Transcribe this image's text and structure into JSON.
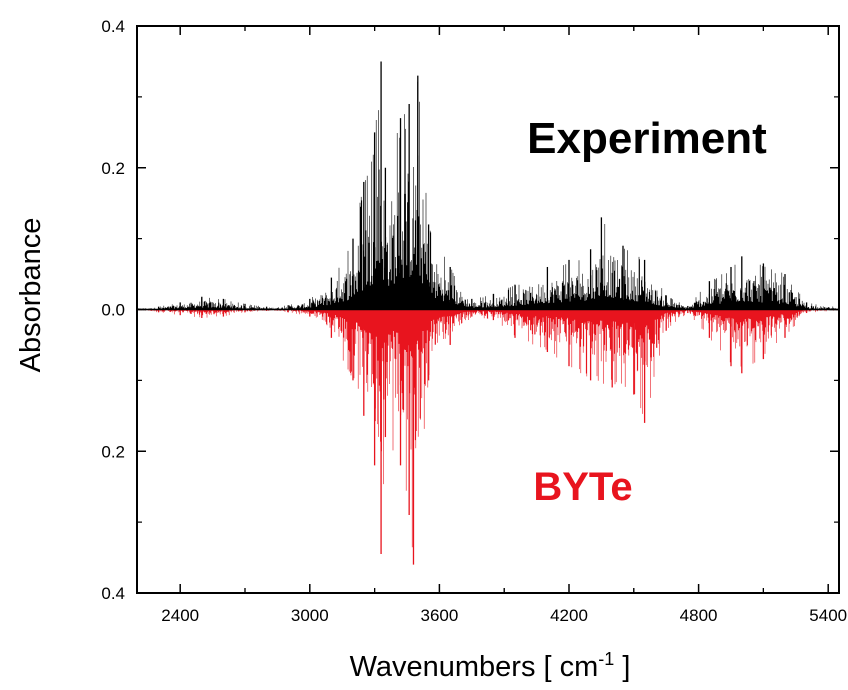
{
  "chart_data": {
    "type": "line",
    "xlabel": "Wavenumbers [ cm",
    "xlabel_sup": "-1",
    "xlabel_suffix": " ]",
    "ylabel": "Absorbance",
    "xlim": [
      2200,
      5450
    ],
    "ylim": [
      -0.4,
      0.4
    ],
    "x_ticks": [
      2400,
      3000,
      3600,
      4200,
      4800,
      5400
    ],
    "x_tick_labels": [
      "2400",
      "3000",
      "3600",
      "4200",
      "4800",
      "5400"
    ],
    "y_ticks": [
      0.4,
      0.2,
      0.0,
      -0.2,
      -0.4
    ],
    "y_tick_labels": [
      "0.4",
      "0.2",
      "0.0",
      "0.2",
      "0.4"
    ],
    "grid": false,
    "series": [
      {
        "name": "Experiment",
        "color": "#000000",
        "direction": "up",
        "points": [
          [
            2200,
            0.002
          ],
          [
            2300,
            0.004
          ],
          [
            2400,
            0.01
          ],
          [
            2500,
            0.018
          ],
          [
            2600,
            0.015
          ],
          [
            2700,
            0.008
          ],
          [
            2800,
            0.004
          ],
          [
            2900,
            0.006
          ],
          [
            3000,
            0.015
          ],
          [
            3100,
            0.045
          ],
          [
            3200,
            0.1
          ],
          [
            3250,
            0.18
          ],
          [
            3300,
            0.25
          ],
          [
            3330,
            0.35
          ],
          [
            3350,
            0.2
          ],
          [
            3420,
            0.27
          ],
          [
            3460,
            0.29
          ],
          [
            3500,
            0.33
          ],
          [
            3550,
            0.12
          ],
          [
            3650,
            0.06
          ],
          [
            3750,
            0.015
          ],
          [
            3850,
            0.022
          ],
          [
            3950,
            0.035
          ],
          [
            4100,
            0.06
          ],
          [
            4200,
            0.07
          ],
          [
            4300,
            0.085
          ],
          [
            4350,
            0.13
          ],
          [
            4450,
            0.09
          ],
          [
            4550,
            0.07
          ],
          [
            4650,
            0.02
          ],
          [
            4750,
            0.005
          ],
          [
            4850,
            0.04
          ],
          [
            4950,
            0.06
          ],
          [
            5000,
            0.075
          ],
          [
            5100,
            0.065
          ],
          [
            5200,
            0.05
          ],
          [
            5300,
            0.01
          ],
          [
            5450,
            0.003
          ]
        ]
      },
      {
        "name": "BYTe",
        "color": "#e8141e",
        "direction": "down",
        "points": [
          [
            2200,
            0.001
          ],
          [
            2300,
            0.004
          ],
          [
            2400,
            0.008
          ],
          [
            2500,
            0.012
          ],
          [
            2600,
            0.01
          ],
          [
            2700,
            0.004
          ],
          [
            2800,
            0.002
          ],
          [
            2900,
            0.004
          ],
          [
            3000,
            0.01
          ],
          [
            3100,
            0.04
          ],
          [
            3200,
            0.1
          ],
          [
            3250,
            0.15
          ],
          [
            3300,
            0.22
          ],
          [
            3330,
            0.345
          ],
          [
            3350,
            0.18
          ],
          [
            3420,
            0.22
          ],
          [
            3460,
            0.29
          ],
          [
            3480,
            0.36
          ],
          [
            3550,
            0.1
          ],
          [
            3650,
            0.05
          ],
          [
            3750,
            0.01
          ],
          [
            3850,
            0.015
          ],
          [
            3950,
            0.04
          ],
          [
            4100,
            0.06
          ],
          [
            4200,
            0.08
          ],
          [
            4300,
            0.1
          ],
          [
            4400,
            0.11
          ],
          [
            4500,
            0.12
          ],
          [
            4550,
            0.16
          ],
          [
            4650,
            0.03
          ],
          [
            4750,
            0.005
          ],
          [
            4850,
            0.04
          ],
          [
            4950,
            0.08
          ],
          [
            5000,
            0.09
          ],
          [
            5100,
            0.07
          ],
          [
            5200,
            0.04
          ],
          [
            5300,
            0.005
          ],
          [
            5450,
            0.001
          ]
        ]
      }
    ]
  }
}
